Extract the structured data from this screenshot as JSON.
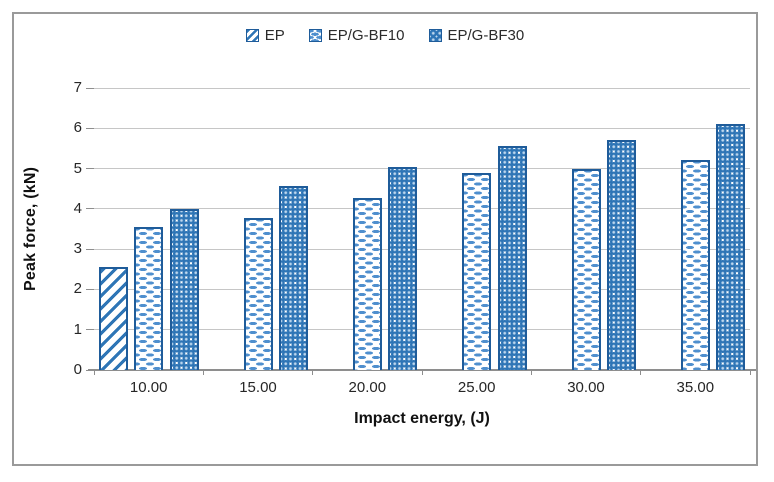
{
  "chart_data": {
    "type": "bar",
    "title": "",
    "xlabel": "Impact energy, (J)",
    "ylabel": "Peak force, (kN)",
    "ylim": [
      0,
      7
    ],
    "yticks": [
      0,
      1,
      2,
      3,
      4,
      5,
      6,
      7
    ],
    "grid": true,
    "legend_position": "top-center",
    "categories": [
      "10.00",
      "15.00",
      "20.00",
      "25.00",
      "30.00",
      "35.00"
    ],
    "series": [
      {
        "name": "EP",
        "pattern": "diagonal-stripes",
        "values": [
          2.55,
          null,
          null,
          null,
          null,
          null
        ]
      },
      {
        "name": "EP/G-BF10",
        "pattern": "dashes",
        "values": [
          3.55,
          3.78,
          4.28,
          4.88,
          5.0,
          5.22
        ]
      },
      {
        "name": "EP/G-BF30",
        "pattern": "spheres",
        "values": [
          4.0,
          4.57,
          5.05,
          5.55,
          5.72,
          6.1
        ]
      }
    ],
    "colors": {
      "bar_border": "#1F5C9A",
      "stripe_fill": "#2E75B6",
      "dash_fill": "#4F8FCE",
      "sphere_fill": "#2E75B6",
      "sphere_highlight": "#BDD7EE",
      "gridline": "#C6C6C6",
      "axis_line": "#8E8E8E",
      "tick_text": "#262626",
      "title_text": "#111111",
      "frame_border": "#9A9A9A"
    }
  }
}
